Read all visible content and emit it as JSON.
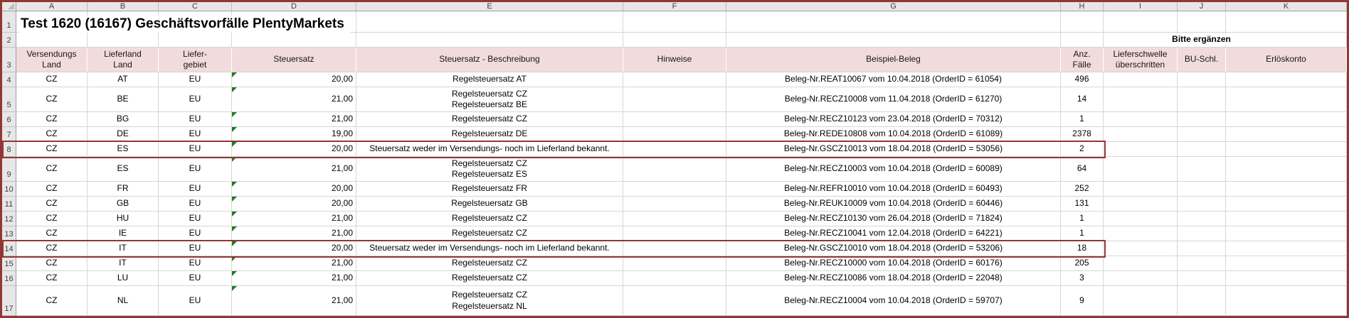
{
  "title": "Test 1620 (16167) Geschäftsvorfälle PlentyMarkets",
  "note": "Bitte ergänzen",
  "colors": {
    "frame_and_flag_border": "#943634",
    "header_fill": "#f2dcdb",
    "gutter_fill": "#e7e7e7",
    "gridline": "#d6d6d6",
    "error_marker_green": "#1e7d1e"
  },
  "column_letters": [
    "A",
    "B",
    "C",
    "D",
    "E",
    "F",
    "G",
    "H",
    "I",
    "J",
    "K"
  ],
  "top_row_numbers": [
    "1",
    "2",
    "3"
  ],
  "headers": [
    "Versendungs\nLand",
    "Lieferland\nLand",
    "Liefer-\ngebiet",
    "Steuersatz",
    "Steuersatz - Beschreibung",
    "Hinweise",
    "Beispiel-Beleg",
    "Anz.\nFälle",
    "Lieferschwelle\nüberschritten",
    "BU-Schl.",
    "Erlöskonto"
  ],
  "rows": [
    {
      "num": "4",
      "flagged": false,
      "double": false,
      "cells": [
        "CZ",
        "AT",
        "EU",
        "20,00",
        "Regelsteuersatz AT",
        "",
        "Beleg-Nr.REAT10067 vom 10.04.2018 (OrderID = 61054)",
        "496",
        "",
        "",
        ""
      ]
    },
    {
      "num": "5",
      "flagged": false,
      "double": true,
      "cells": [
        "CZ",
        "BE",
        "EU",
        "21,00",
        "Regelsteuersatz CZ\nRegelsteuersatz BE",
        "",
        "Beleg-Nr.RECZ10008 vom 11.04.2018 (OrderID = 61270)",
        "14",
        "",
        "",
        ""
      ]
    },
    {
      "num": "6",
      "flagged": false,
      "double": false,
      "cells": [
        "CZ",
        "BG",
        "EU",
        "21,00",
        "Regelsteuersatz CZ",
        "",
        "Beleg-Nr.RECZ10123 vom 23.04.2018 (OrderID = 70312)",
        "1",
        "",
        "",
        ""
      ]
    },
    {
      "num": "7",
      "flagged": false,
      "double": false,
      "cells": [
        "CZ",
        "DE",
        "EU",
        "19,00",
        "Regelsteuersatz DE",
        "",
        "Beleg-Nr.REDE10808 vom 10.04.2018 (OrderID = 61089)",
        "2378",
        "",
        "",
        ""
      ]
    },
    {
      "num": "8",
      "flagged": true,
      "double": false,
      "cells": [
        "CZ",
        "ES",
        "EU",
        "20,00",
        "Steuersatz weder im Versendungs- noch im Lieferland bekannt.",
        "",
        "Beleg-Nr.GSCZ10013 vom 18.04.2018 (OrderID = 53056)",
        "2",
        "",
        "",
        ""
      ]
    },
    {
      "num": "9",
      "flagged": false,
      "double": true,
      "cells": [
        "CZ",
        "ES",
        "EU",
        "21,00",
        "Regelsteuersatz CZ\nRegelsteuersatz ES",
        "",
        "Beleg-Nr.RECZ10003 vom 10.04.2018 (OrderID = 60089)",
        "64",
        "",
        "",
        ""
      ]
    },
    {
      "num": "10",
      "flagged": false,
      "double": false,
      "cells": [
        "CZ",
        "FR",
        "EU",
        "20,00",
        "Regelsteuersatz FR",
        "",
        "Beleg-Nr.REFR10010 vom 10.04.2018 (OrderID = 60493)",
        "252",
        "",
        "",
        ""
      ]
    },
    {
      "num": "11",
      "flagged": false,
      "double": false,
      "cells": [
        "CZ",
        "GB",
        "EU",
        "20,00",
        "Regelsteuersatz GB",
        "",
        "Beleg-Nr.REUK10009 vom 10.04.2018 (OrderID = 60446)",
        "131",
        "",
        "",
        ""
      ]
    },
    {
      "num": "12",
      "flagged": false,
      "double": false,
      "cells": [
        "CZ",
        "HU",
        "EU",
        "21,00",
        "Regelsteuersatz CZ",
        "",
        "Beleg-Nr.RECZ10130 vom 26.04.2018 (OrderID = 71824)",
        "1",
        "",
        "",
        ""
      ]
    },
    {
      "num": "13",
      "flagged": false,
      "double": false,
      "cells": [
        "CZ",
        "IE",
        "EU",
        "21,00",
        "Regelsteuersatz CZ",
        "",
        "Beleg-Nr.RECZ10041 vom 12.04.2018 (OrderID = 64221)",
        "1",
        "",
        "",
        ""
      ]
    },
    {
      "num": "14",
      "flagged": true,
      "double": false,
      "cells": [
        "CZ",
        "IT",
        "EU",
        "20,00",
        "Steuersatz weder im Versendungs- noch im Lieferland bekannt.",
        "",
        "Beleg-Nr.GSCZ10010 vom 18.04.2018 (OrderID = 53206)",
        "18",
        "",
        "",
        ""
      ]
    },
    {
      "num": "15",
      "flagged": false,
      "double": false,
      "cells": [
        "CZ",
        "IT",
        "EU",
        "21,00",
        "Regelsteuersatz CZ",
        "",
        "Beleg-Nr.RECZ10000 vom 10.04.2018 (OrderID = 60176)",
        "205",
        "",
        "",
        ""
      ]
    },
    {
      "num": "16",
      "flagged": false,
      "double": false,
      "cells": [
        "CZ",
        "LU",
        "EU",
        "21,00",
        "Regelsteuersatz CZ",
        "",
        "Beleg-Nr.RECZ10086 vom 18.04.2018 (OrderID = 22048)",
        "3",
        "",
        "",
        ""
      ]
    },
    {
      "num": "17",
      "flagged": false,
      "double": true,
      "cells": [
        "CZ",
        "NL",
        "EU",
        "21,00",
        "Regelsteuersatz CZ\nRegelsteuersatz NL",
        "",
        "Beleg-Nr.RECZ10004 vom 10.04.2018 (OrderID = 59707)",
        "9",
        "",
        "",
        ""
      ]
    }
  ]
}
